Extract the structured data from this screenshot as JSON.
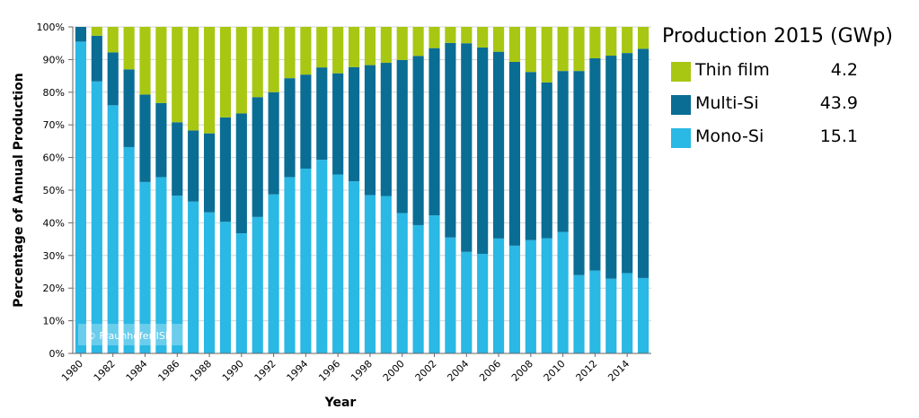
{
  "chart_data": {
    "type": "bar",
    "stacked": true,
    "xlabel": "Year",
    "ylabel": "Percentage of Annual Production",
    "ylim": [
      0,
      100
    ],
    "yticks": [
      "0%",
      "10%",
      "20%",
      "30%",
      "40%",
      "50%",
      "60%",
      "70%",
      "80%",
      "90%",
      "100%"
    ],
    "x_tick_labels": [
      "1980",
      "1982",
      "1984",
      "1986",
      "1988",
      "1990",
      "1992",
      "1994",
      "1996",
      "1998",
      "2000",
      "2002",
      "2004",
      "2006",
      "2008",
      "2010",
      "2012",
      "2014"
    ],
    "categories": [
      1980,
      1981,
      1982,
      1983,
      1984,
      1985,
      1986,
      1987,
      1988,
      1989,
      1990,
      1991,
      1992,
      1993,
      1994,
      1995,
      1996,
      1997,
      1998,
      1999,
      2000,
      2001,
      2002,
      2003,
      2004,
      2005,
      2006,
      2007,
      2008,
      2009,
      2010,
      2011,
      2012,
      2013,
      2014,
      2015
    ],
    "series": [
      {
        "name": "Mono-Si",
        "color": "#2ab8e4",
        "values": [
          95.5,
          83.3,
          76,
          63.2,
          52.5,
          54,
          48.3,
          46.5,
          43.2,
          40.3,
          36.8,
          41.8,
          48.7,
          54,
          56.6,
          59.3,
          54.8,
          52.7,
          48.5,
          48.2,
          43,
          39.3,
          42.3,
          35.5,
          31.1,
          30.5,
          35.2,
          33,
          34.7,
          35.3,
          37.2,
          24,
          25.4,
          22.9,
          24.6,
          23.1
        ]
      },
      {
        "name": "Multi-Si",
        "color": "#0a6d94",
        "values": [
          4.5,
          14,
          16.2,
          23.8,
          26.8,
          22.7,
          22.5,
          21.8,
          24.2,
          32,
          36.7,
          36.7,
          31.3,
          30.3,
          28.8,
          28.3,
          31,
          35,
          39.8,
          40.8,
          46.9,
          51.8,
          51.2,
          59.6,
          63.9,
          63.2,
          57.2,
          56.3,
          51.5,
          47.7,
          49.3,
          62.5,
          65,
          68.3,
          67.4,
          70.2
        ]
      },
      {
        "name": "Thin film",
        "color": "#a7c712",
        "values": [
          0,
          2.7,
          7.8,
          13,
          20.7,
          23.3,
          29.2,
          31.7,
          32.6,
          27.7,
          26.5,
          21.5,
          20,
          15.7,
          14.6,
          12.4,
          14.2,
          12.3,
          11.7,
          11,
          10.1,
          8.9,
          6.5,
          4.9,
          5,
          6.3,
          7.6,
          10.7,
          13.8,
          17,
          13.5,
          13.5,
          9.6,
          8.8,
          8,
          6.7
        ]
      }
    ],
    "watermark": "© Fraunhofer ISE"
  },
  "legend": {
    "title": "Production 2015 (GWp)",
    "items": [
      {
        "label": "Thin film",
        "value": "4.2",
        "color": "#a7c712"
      },
      {
        "label": "Multi-Si",
        "value": "43.9",
        "color": "#0a6d94"
      },
      {
        "label": "Mono-Si",
        "value": "15.1",
        "color": "#2ab8e4"
      }
    ]
  }
}
